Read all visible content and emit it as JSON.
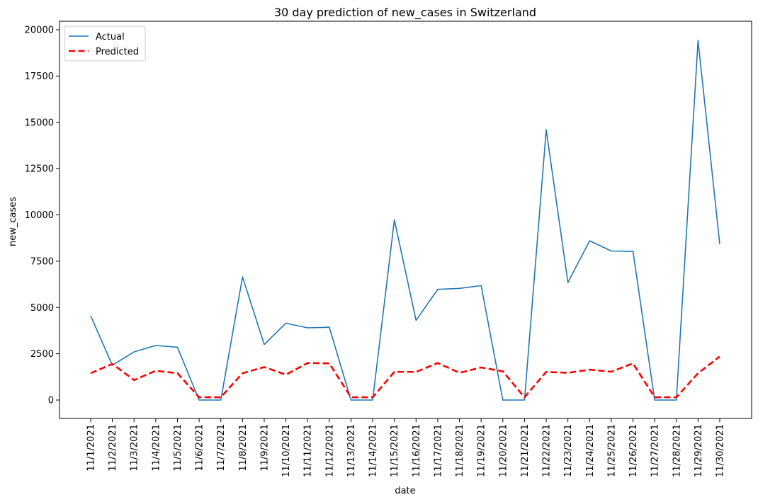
{
  "chart_data": {
    "type": "line",
    "title": "30 day prediction of new_cases in Switzerland",
    "xlabel": "date",
    "ylabel": "new_cases",
    "ylim": [
      -1000,
      20600
    ],
    "yticks": [
      0,
      2500,
      5000,
      7500,
      10000,
      12500,
      15000,
      17500,
      20000
    ],
    "ytick_labels": [
      "0",
      "2500",
      "5000",
      "7500",
      "10000",
      "12500",
      "15000",
      "17500",
      "20000"
    ],
    "grid": false,
    "legend_position": "top-left",
    "categories": [
      "11/1/2021",
      "11/2/2021",
      "11/3/2021",
      "11/4/2021",
      "11/5/2021",
      "11/6/2021",
      "11/7/2021",
      "11/8/2021",
      "11/9/2021",
      "11/10/2021",
      "11/11/2021",
      "11/12/2021",
      "11/13/2021",
      "11/14/2021",
      "11/15/2021",
      "11/16/2021",
      "11/17/2021",
      "11/18/2021",
      "11/19/2021",
      "11/20/2021",
      "11/21/2021",
      "11/22/2021",
      "11/23/2021",
      "11/24/2021",
      "11/25/2021",
      "11/26/2021",
      "11/27/2021",
      "11/28/2021",
      "11/29/2021",
      "11/30/2021"
    ],
    "series": [
      {
        "name": "Actual",
        "color": "#1f77b4",
        "style": "solid",
        "values": [
          4550,
          1880,
          2600,
          2950,
          2850,
          0,
          0,
          6650,
          3000,
          4150,
          3900,
          3930,
          0,
          0,
          9730,
          4300,
          5980,
          6030,
          6180,
          0,
          0,
          14600,
          6350,
          8600,
          8050,
          8030,
          0,
          0,
          19420,
          8420
        ]
      },
      {
        "name": "Predicted",
        "color": "#ff0000",
        "style": "dashed",
        "values": [
          1450,
          1950,
          1080,
          1580,
          1450,
          150,
          150,
          1450,
          1780,
          1370,
          2000,
          1980,
          150,
          150,
          1520,
          1520,
          2000,
          1470,
          1760,
          1550,
          150,
          1520,
          1470,
          1640,
          1530,
          1980,
          150,
          150,
          1450,
          2350
        ]
      }
    ]
  }
}
